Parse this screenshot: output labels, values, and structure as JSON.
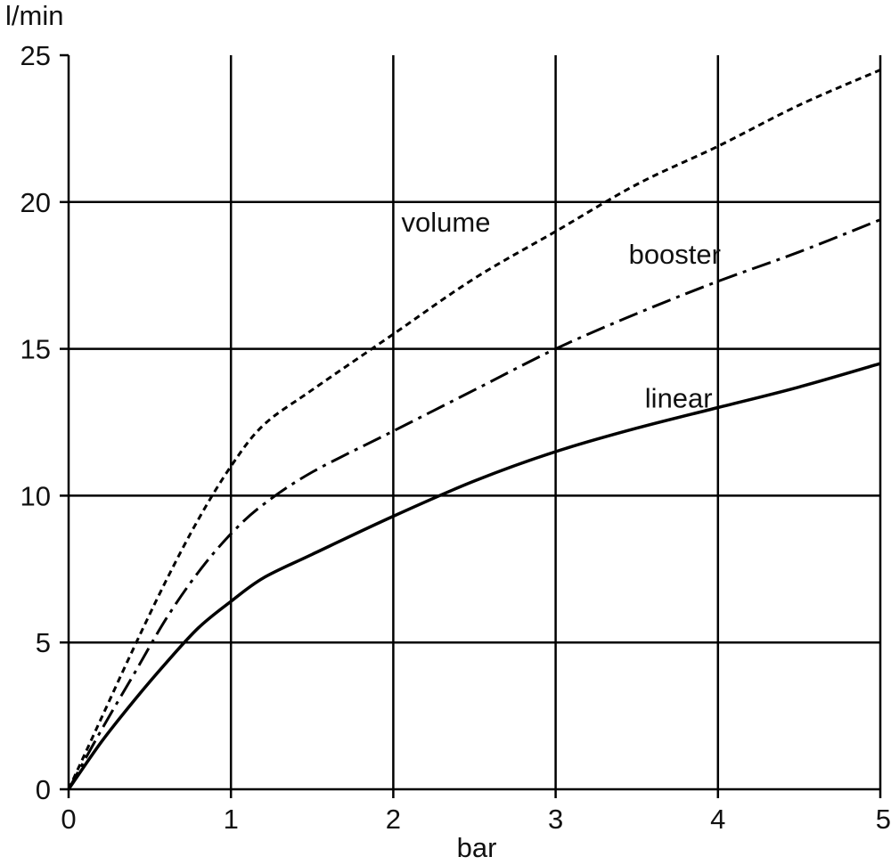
{
  "chart_data": {
    "type": "line",
    "title": "",
    "xlabel": "bar",
    "ylabel": "l/min",
    "xlim": [
      0,
      5
    ],
    "ylim": [
      0,
      25
    ],
    "x_ticks": [
      0,
      1,
      2,
      3,
      4,
      5
    ],
    "y_ticks": [
      0,
      5,
      10,
      15,
      20,
      25
    ],
    "grid": true,
    "legend": "none",
    "series": [
      {
        "name": "volume",
        "style": "dotted",
        "points": [
          [
            0,
            0
          ],
          [
            0.2,
            2.4
          ],
          [
            0.4,
            4.8
          ],
          [
            0.6,
            7.1
          ],
          [
            0.8,
            9.2
          ],
          [
            1.0,
            11.0
          ],
          [
            1.2,
            12.4
          ],
          [
            1.5,
            13.6
          ],
          [
            2.0,
            15.5
          ],
          [
            2.5,
            17.4
          ],
          [
            3.0,
            19.0
          ],
          [
            3.5,
            20.6
          ],
          [
            4.0,
            21.9
          ],
          [
            4.5,
            23.3
          ],
          [
            5.0,
            24.5
          ]
        ]
      },
      {
        "name": "booster",
        "style": "dash-dot",
        "points": [
          [
            0,
            0
          ],
          [
            0.2,
            2.0
          ],
          [
            0.4,
            3.9
          ],
          [
            0.6,
            5.8
          ],
          [
            0.8,
            7.4
          ],
          [
            1.0,
            8.7
          ],
          [
            1.2,
            9.7
          ],
          [
            1.5,
            10.8
          ],
          [
            2.0,
            12.2
          ],
          [
            2.5,
            13.6
          ],
          [
            3.0,
            15.0
          ],
          [
            3.5,
            16.2
          ],
          [
            4.0,
            17.3
          ],
          [
            4.5,
            18.3
          ],
          [
            5.0,
            19.4
          ]
        ]
      },
      {
        "name": "linear",
        "style": "solid",
        "points": [
          [
            0,
            0
          ],
          [
            0.2,
            1.6
          ],
          [
            0.4,
            3.0
          ],
          [
            0.6,
            4.3
          ],
          [
            0.8,
            5.5
          ],
          [
            1.0,
            6.4
          ],
          [
            1.2,
            7.2
          ],
          [
            1.5,
            8.0
          ],
          [
            2.0,
            9.3
          ],
          [
            2.5,
            10.5
          ],
          [
            3.0,
            11.5
          ],
          [
            3.5,
            12.3
          ],
          [
            4.0,
            13.0
          ],
          [
            4.5,
            13.7
          ],
          [
            5.0,
            14.5
          ]
        ]
      }
    ],
    "annotations": [
      {
        "text": "volume",
        "x": 2.05,
        "y": 19.0
      },
      {
        "text": "booster",
        "x": 3.45,
        "y": 17.9
      },
      {
        "text": "linear",
        "x": 3.55,
        "y": 13.0
      }
    ]
  }
}
